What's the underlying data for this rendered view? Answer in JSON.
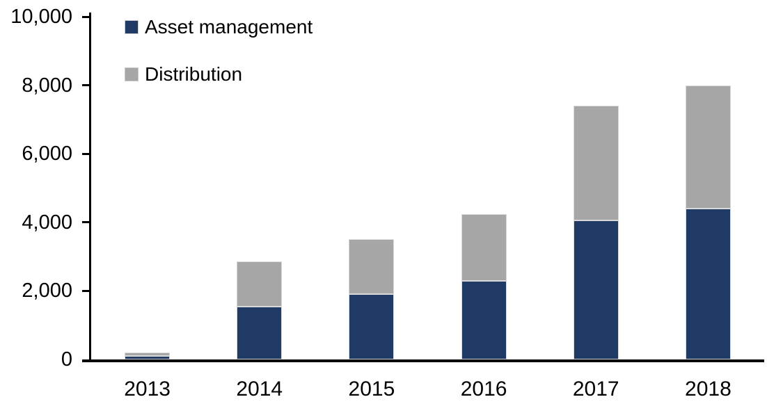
{
  "chart_data": {
    "type": "bar",
    "stacked": true,
    "categories": [
      "2013",
      "2014",
      "2015",
      "2016",
      "2017",
      "2018"
    ],
    "series": [
      {
        "name": "Asset management",
        "color": "#203a66",
        "values": [
          100,
          1550,
          1900,
          2300,
          4050,
          4400
        ]
      },
      {
        "name": "Distribution",
        "color": "#a6a6a6",
        "values": [
          100,
          1320,
          1600,
          1950,
          3350,
          3600
        ]
      }
    ],
    "title": "",
    "xlabel": "",
    "ylabel": "",
    "ylim": [
      0,
      10000
    ],
    "yticks": [
      0,
      2000,
      4000,
      6000,
      8000,
      10000
    ],
    "ytick_labels": [
      "0",
      "2,000",
      "4,000",
      "6,000",
      "8,000",
      "10,000"
    ],
    "grid": false,
    "legend_position": "top-left",
    "axis_color": "#000000",
    "background_color": "#ffffff"
  }
}
